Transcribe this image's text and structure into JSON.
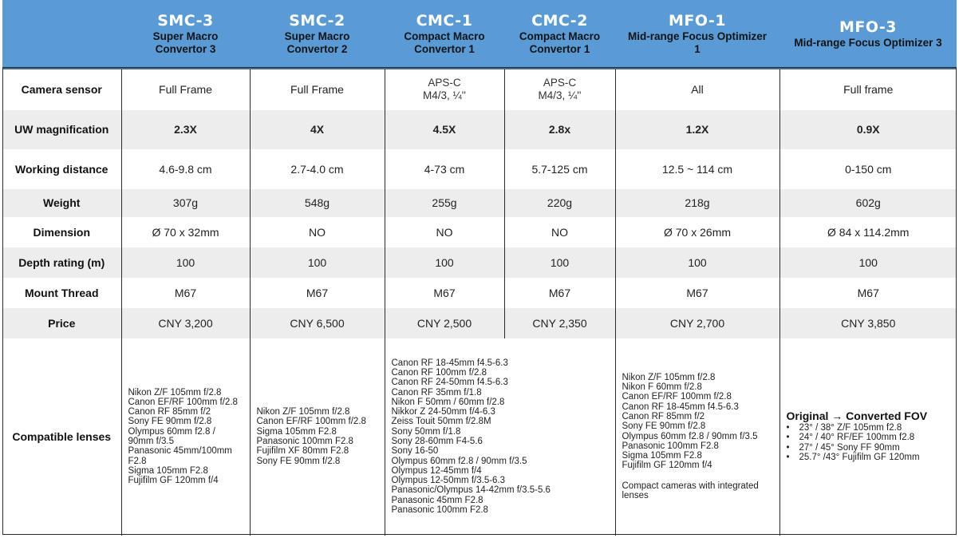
{
  "columns": [
    {
      "name": "SMC-3",
      "full": [
        "Super Macro",
        "Convertor 3"
      ]
    },
    {
      "name": "SMC-2",
      "full": [
        "Super Macro",
        "Convertor 2"
      ]
    },
    {
      "name": "CMC-1",
      "full": [
        "Compact Macro",
        "Convertor 1"
      ]
    },
    {
      "name": "CMC-2",
      "full": [
        "Compact Macro",
        "Convertor 1"
      ]
    },
    {
      "name": "MFO-1",
      "full": [
        "Mid-range Focus Optimizer",
        "1"
      ]
    },
    {
      "name": "MFO-3",
      "full": [
        "Mid-range Focus Optimizer 3"
      ]
    }
  ],
  "rows": {
    "camera_sensor": {
      "label": "Camera sensor",
      "values": [
        "Full Frame",
        "Full Frame",
        [
          "APS-C",
          "M4/3, ¼''"
        ],
        [
          "APS-C",
          "M4/3, ¼''"
        ],
        "All",
        "Full frame"
      ]
    },
    "uw_magnification": {
      "label": "UW magnification",
      "values": [
        "2.3X",
        "4X",
        "4.5X",
        "2.8x",
        "1.2X",
        "0.9X"
      ]
    },
    "working_distance": {
      "label": "Working distance",
      "values": [
        "4.6-9.8 cm",
        "2.7-4.0 cm",
        "4-73 cm",
        "5.7-125 cm",
        "12.5 ~ 114 cm",
        "0-150 cm"
      ]
    },
    "weight": {
      "label": "Weight",
      "values": [
        "307g",
        "548g",
        "255g",
        "220g",
        "218g",
        "602g"
      ]
    },
    "dimension": {
      "label": "Dimension",
      "values": [
        "Ø 70 x 32mm",
        "NO",
        "NO",
        "NO",
        "Ø 70 x 26mm",
        "Ø 84 x 114.2mm"
      ]
    },
    "depth_rating": {
      "label": "Depth rating (m)",
      "values": [
        "100",
        "100",
        "100",
        "100",
        "100",
        "100"
      ]
    },
    "mount_thread": {
      "label": "Mount Thread",
      "values": [
        "M67",
        "M67",
        "M67",
        "M67",
        "M67",
        "M67"
      ]
    },
    "price": {
      "label": "Price",
      "values": [
        "CNY 3,200",
        "CNY 6,500",
        "CNY 2,500",
        "CNY 2,350",
        "CNY 2,700",
        "CNY 3,850"
      ]
    }
  },
  "compatible": {
    "label": "Compatible lenses",
    "smc3": [
      "Nikon Z/F 105mm f/2.8",
      "Canon EF/RF 100mm f/2.8",
      "Canon RF 85mm f/2",
      "Sony FE 90mm f/2.8",
      "Olympus 60mm f2.8 /",
      "90mm f/3.5",
      "Panasonic 45mm/100mm",
      "F2.8",
      "Sigma 105mm F2.8",
      "Fujifilm GF 120mm f/4"
    ],
    "smc2": [
      "Nikon Z/F 105mm f/2.8",
      "Canon EF/RF 100mm f/2.8",
      "Sigma 105mm F2.8",
      "Panasonic 100mm F2.8",
      "Fujifilm XF 80mm F2.8",
      "Sony FE 90mm f/2.8"
    ],
    "cmc": [
      "Canon RF 18-45mm f4.5-6.3",
      "Canon RF 100mm f/2.8",
      "Canon RF 24-50mm f4.5-6.3",
      "Canon RF 35mm f/1.8",
      "Nikon F 50mm / 60mm f/2.8",
      "Nikkor Z 24-50mm f/4-6.3",
      "Zeiss Touit 50mm f/2.8M",
      "Sony 50mm f/1.8",
      "Sony 28-60mm F4-5.6",
      "Sony 16-50",
      "Olympus 60mm f2.8 / 90mm f/3.5",
      "Olympus 12-45mm f/4",
      "Olympus 12-50mm f/3.5-6.3",
      "Panasonic/Olympus 14-42mm f/3.5-5.6",
      "Panasonic 45mm F2.8",
      "Panasonic 100mm F2.8"
    ],
    "mfo1": [
      "Nikon Z/F 105mm f/2.8",
      "Nikon F 60mm f/2.8",
      "Canon EF/RF 100mm f/2.8",
      "Canon RF 18-45mm f4.5-6.3",
      "Canon RF 85mm f/2",
      "Sony FE 90mm f/2.8",
      "Olympus 60mm f2.8 / 90mm f/3.5",
      "Panasonic 100mm F2.8",
      "Sigma 105mm F2.8",
      "Fujifilm GF 120mm f/4"
    ],
    "mfo1_note": "Compact cameras with integrated lenses",
    "mfo3_title": "Original → Converted FOV",
    "mfo3_bullet": "•",
    "mfo3": [
      "23° / 38° Z/F 105mm f2.8",
      "24° / 40° RF/EF 100mm f2.8",
      "27° / 45° Sony FF 90mm",
      "25.7° /43° Fujifilm GF 120mm"
    ]
  }
}
